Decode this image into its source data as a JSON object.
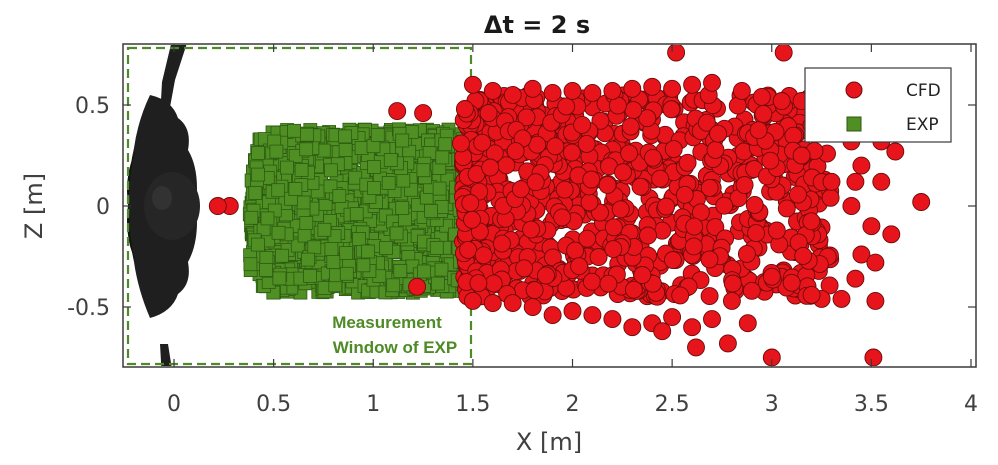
{
  "chart_data": {
    "type": "scatter",
    "title": "Δt = 2 s",
    "xlabel": "X [m]",
    "ylabel": "Z [m]",
    "xlim": [
      -0.22,
      4.0
    ],
    "ylim": [
      -0.8,
      0.8
    ],
    "x_ticks": [
      "0",
      "0.5",
      "1",
      "1.5",
      "2",
      "2.5",
      "3",
      "3.5",
      "4"
    ],
    "y_ticks": [
      "0.5",
      "0",
      "-0.5"
    ],
    "grid": false,
    "legend_position": "top-right",
    "legend": [
      "CFD",
      "EXP"
    ],
    "annotation": {
      "line1": "Measurement",
      "line2": "Window of EXP",
      "window_x_range": [
        -0.22,
        1.5
      ],
      "window_z_range": [
        -0.8,
        0.8
      ]
    },
    "series": [
      {
        "name": "CFD",
        "marker": "circle",
        "color": "#e8141b",
        "points": [
          [
            1.44,
            0.31
          ],
          [
            1.46,
            0.48
          ],
          [
            1.5,
            0.6
          ],
          [
            1.6,
            0.57
          ],
          [
            1.7,
            0.55
          ],
          [
            1.8,
            0.58
          ],
          [
            1.9,
            0.56
          ],
          [
            2.0,
            0.57
          ],
          [
            2.1,
            0.56
          ],
          [
            2.2,
            0.57
          ],
          [
            2.3,
            0.58
          ],
          [
            2.4,
            0.59
          ],
          [
            2.5,
            0.58
          ],
          [
            2.6,
            0.6
          ],
          [
            2.7,
            0.61
          ],
          [
            2.85,
            0.57
          ],
          [
            2.95,
            0.54
          ],
          [
            3.05,
            0.52
          ],
          [
            3.15,
            0.52
          ],
          [
            2.52,
            0.76
          ],
          [
            3.06,
            0.76
          ],
          [
            1.25,
            0.46
          ],
          [
            1.12,
            0.47
          ],
          [
            3.2,
            0.4
          ],
          [
            3.3,
            0.36
          ],
          [
            3.4,
            0.32
          ],
          [
            3.55,
            0.32
          ],
          [
            3.62,
            0.27
          ],
          [
            3.15,
            0.25
          ],
          [
            3.3,
            0.12
          ],
          [
            3.42,
            0.12
          ],
          [
            3.45,
            0.2
          ],
          [
            3.75,
            0.02
          ],
          [
            3.55,
            0.12
          ],
          [
            3.6,
            -0.14
          ],
          [
            3.5,
            -0.1
          ],
          [
            3.45,
            -0.24
          ],
          [
            3.42,
            -0.36
          ],
          [
            3.52,
            -0.28
          ],
          [
            3.52,
            -0.47
          ],
          [
            3.51,
            -0.75
          ],
          [
            3.35,
            -0.46
          ],
          [
            3.25,
            -0.46
          ],
          [
            3.2,
            -0.44
          ],
          [
            3.1,
            -0.38
          ],
          [
            3.0,
            -0.35
          ],
          [
            2.9,
            -0.42
          ],
          [
            2.8,
            -0.47
          ],
          [
            2.7,
            -0.56
          ],
          [
            2.6,
            -0.6
          ],
          [
            2.5,
            -0.55
          ],
          [
            2.4,
            -0.58
          ],
          [
            2.3,
            -0.6
          ],
          [
            2.2,
            -0.56
          ],
          [
            2.1,
            -0.54
          ],
          [
            2.0,
            -0.52
          ],
          [
            1.9,
            -0.54
          ],
          [
            1.8,
            -0.5
          ],
          [
            1.7,
            -0.48
          ],
          [
            1.6,
            -0.48
          ],
          [
            1.5,
            -0.47
          ],
          [
            2.45,
            -0.62
          ],
          [
            2.78,
            -0.68
          ],
          [
            3.0,
            -0.75
          ],
          [
            2.88,
            -0.58
          ],
          [
            2.62,
            -0.7
          ],
          [
            1.22,
            -0.4
          ],
          [
            3.4,
            0.0
          ],
          [
            0.28,
            0.0
          ],
          [
            0.22,
            0.0
          ]
        ],
        "dense_cloud": {
          "x_range": [
            1.45,
            3.3
          ],
          "z_range": [
            -0.45,
            0.55
          ],
          "approx_count": 900
        }
      },
      {
        "name": "EXP",
        "marker": "square",
        "color": "#4f8f23",
        "dense_cloud": {
          "x_range": [
            0.38,
            1.5
          ],
          "z_range": [
            -0.43,
            0.38
          ],
          "approx_count": 1400
        }
      }
    ]
  },
  "colors": {
    "cfd_fill": "#e8141b",
    "cfd_edge": "#6e0a0a",
    "exp_fill": "#4f8f23",
    "exp_edge": "#2c5a12",
    "window_border": "#4e8a26",
    "axis": "#3a3a3a",
    "mannequin": "#1f1f1f"
  },
  "icons": {
    "mannequin": "human-figure-silhouette-top-view"
  }
}
